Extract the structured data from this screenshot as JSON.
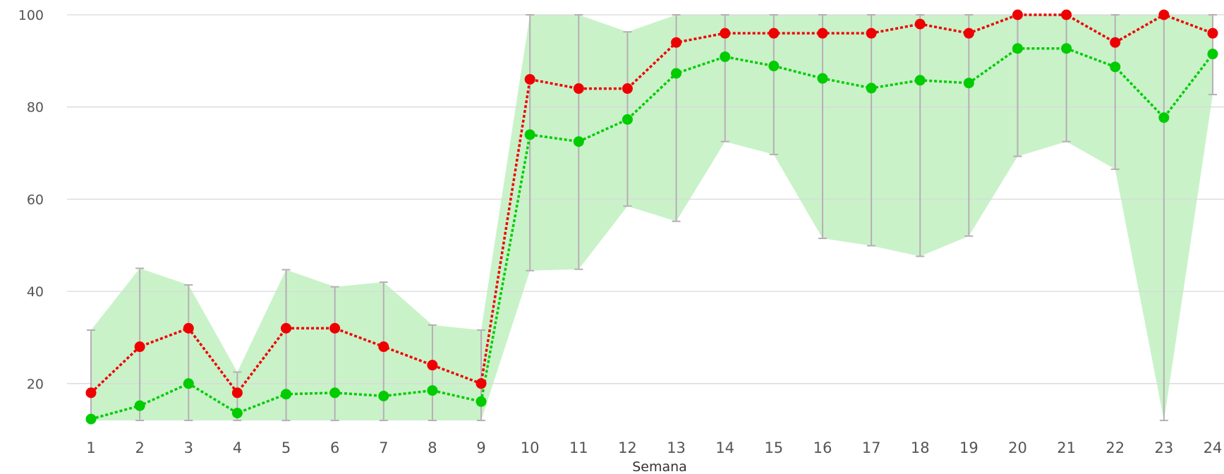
{
  "chart_data": {
    "type": "line",
    "title": "",
    "xlabel": "Semana",
    "ylabel": "",
    "x": [
      "1",
      "2",
      "3",
      "4",
      "5",
      "6",
      "7",
      "8",
      "9",
      "10",
      "11",
      "12",
      "13",
      "14",
      "15",
      "16",
      "17",
      "18",
      "19",
      "20",
      "21",
      "22",
      "23",
      "24"
    ],
    "ylim": [
      12,
      100
    ],
    "yticks": [
      20,
      40,
      60,
      80,
      100
    ],
    "grid": true,
    "legend": "none",
    "series": [
      {
        "color": "#ee0000",
        "style": "dotted",
        "values": [
          18,
          28,
          32,
          18,
          32,
          32,
          28,
          24,
          20,
          86,
          84,
          84,
          94,
          96,
          96,
          96,
          96,
          98,
          96,
          100,
          100,
          94,
          100,
          96
        ]
      },
      {
        "color": "#00cc00",
        "style": "dotted",
        "values": [
          12.3,
          15.2,
          20,
          13.6,
          17.7,
          18,
          17.3,
          18.5,
          16.1,
          74,
          72.5,
          77.3,
          87.3,
          90.9,
          88.9,
          86.2,
          84.1,
          85.8,
          85.2,
          92.7,
          92.7,
          88.7,
          77.7,
          91.5
        ]
      }
    ],
    "band": {
      "color": "#c9f2c9",
      "lower": [
        12,
        12,
        12,
        12,
        12,
        12,
        12,
        12,
        12,
        44.5,
        44.8,
        58.5,
        55.2,
        72.5,
        69.7,
        51.5,
        49.9,
        47.6,
        52,
        69.3,
        72.5,
        66.5,
        12,
        82.7
      ],
      "upper": [
        31.6,
        45,
        41.4,
        22.5,
        44.7,
        41,
        42,
        32.7,
        31.6,
        100,
        100,
        96.3,
        100,
        100,
        100,
        100,
        100,
        100,
        100,
        100,
        100,
        100,
        100,
        100
      ]
    },
    "errorbar_color": "#b8aeb5"
  }
}
